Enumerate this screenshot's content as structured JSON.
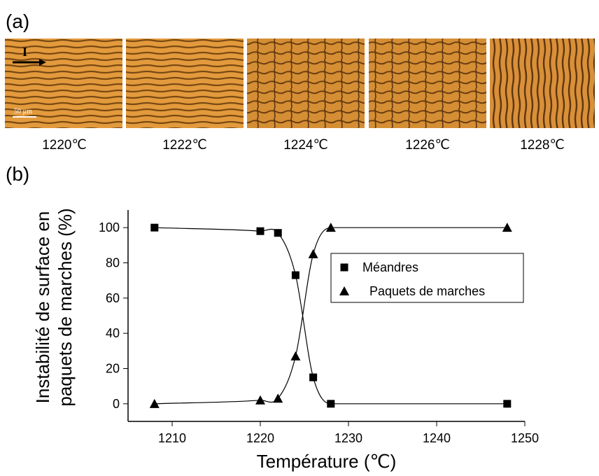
{
  "panel_a": {
    "label": "(a)",
    "arrow_label": "I",
    "scale_bar": "50 µm",
    "captions": [
      "1220℃",
      "1222℃",
      "1224℃",
      "1226℃",
      "1228℃"
    ]
  },
  "panel_b": {
    "label": "(b)"
  },
  "chart_data": {
    "type": "scatter",
    "x": [
      1208,
      1220,
      1222,
      1224,
      1226,
      1228,
      1248
    ],
    "series": [
      {
        "name": "Méandres",
        "color": "#000000",
        "marker": "square",
        "values": [
          100,
          98,
          97,
          73,
          15,
          0,
          0
        ]
      },
      {
        "name": "Paquets de marches",
        "color": "#000000",
        "marker": "triangle",
        "values": [
          0,
          2,
          3,
          27,
          85,
          100,
          100
        ]
      }
    ],
    "xlabel": "Température (℃)",
    "ylabel": [
      "Instabilité de surface en",
      "paquets de marches (%)"
    ],
    "xlim": [
      1205,
      1250
    ],
    "ylim": [
      -10,
      110
    ],
    "xticks": [
      1210,
      1220,
      1230,
      1240,
      1250
    ],
    "yticks": [
      0,
      20,
      40,
      60,
      80,
      100
    ],
    "line": true
  }
}
